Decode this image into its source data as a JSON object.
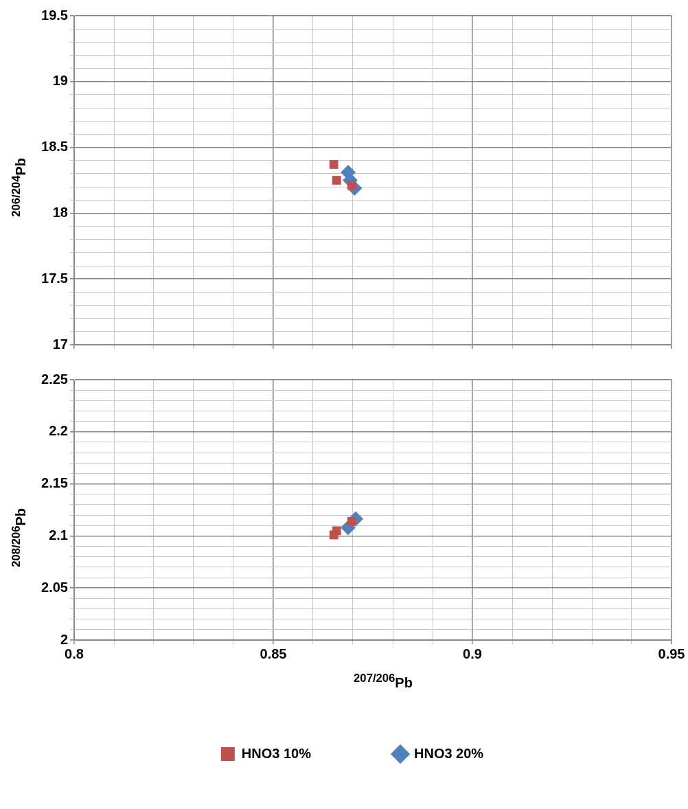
{
  "chart_data": [
    {
      "type": "scatter",
      "ylabel": "$^{206/204}$Pb",
      "xlim": [
        0.8,
        0.95
      ],
      "ylim": [
        17,
        19.5
      ],
      "xticks": [
        0.8,
        {
          "value": 0.81,
          "label": null
        },
        {
          "value": 0.82,
          "label": null
        },
        {
          "value": 0.83,
          "label": null
        },
        {
          "value": 0.84,
          "label": null
        },
        0.85,
        {
          "value": 0.86,
          "label": null
        },
        {
          "value": 0.87,
          "label": null
        },
        {
          "value": 0.88,
          "label": null
        },
        {
          "value": 0.89,
          "label": null
        },
        0.9,
        {
          "value": 0.91,
          "label": null
        },
        {
          "value": 0.92,
          "label": null
        },
        {
          "value": 0.93,
          "label": null
        },
        {
          "value": 0.94,
          "label": null
        },
        0.95
      ],
      "yticks": [
        17,
        {
          "value": 17.1,
          "label": null
        },
        {
          "value": 17.2,
          "label": null
        },
        {
          "value": 17.3,
          "label": null
        },
        {
          "value": 17.4,
          "label": null
        },
        17.5,
        {
          "value": 17.6,
          "label": null
        },
        {
          "value": 17.7,
          "label": null
        },
        {
          "value": 17.8,
          "label": null
        },
        {
          "value": 17.9,
          "label": null
        },
        18,
        {
          "value": 18.1,
          "label": null
        },
        {
          "value": 18.2,
          "label": null
        },
        {
          "value": 18.3,
          "label": null
        },
        {
          "value": 18.4,
          "label": null
        },
        18.5,
        {
          "value": 18.6,
          "label": null
        },
        {
          "value": 18.7,
          "label": null
        },
        {
          "value": 18.8,
          "label": null
        },
        {
          "value": 18.9,
          "label": null
        },
        19,
        {
          "value": 19.1,
          "label": null
        },
        {
          "value": 19.2,
          "label": null
        },
        {
          "value": 19.3,
          "label": null
        },
        {
          "value": 19.4,
          "label": null
        },
        19.5
      ],
      "grid": true,
      "tick_labels": "y",
      "series": [
        {
          "color": "#c0504d",
          "marker": "square",
          "x": [
            0.8652,
            0.8659,
            0.8697
          ],
          "values": [
            18.37,
            18.25,
            18.21
          ]
        },
        {
          "color": "#4f81bd",
          "marker": "diamond",
          "x": [
            0.8688,
            0.8693,
            0.8704
          ],
          "values": [
            18.31,
            18.25,
            18.19
          ]
        }
      ]
    },
    {
      "type": "scatter",
      "xlabel": "$^{207/206}$Pb",
      "ylabel": "$^{208/206}$Pb",
      "xlim": [
        0.8,
        0.95
      ],
      "ylim": [
        2,
        2.25
      ],
      "xticks": [
        0.8,
        {
          "value": 0.81,
          "label": null
        },
        {
          "value": 0.82,
          "label": null
        },
        {
          "value": 0.83,
          "label": null
        },
        {
          "value": 0.84,
          "label": null
        },
        0.85,
        {
          "value": 0.86,
          "label": null
        },
        {
          "value": 0.87,
          "label": null
        },
        {
          "value": 0.88,
          "label": null
        },
        {
          "value": 0.89,
          "label": null
        },
        0.9,
        {
          "value": 0.91,
          "label": null
        },
        {
          "value": 0.92,
          "label": null
        },
        {
          "value": 0.93,
          "label": null
        },
        {
          "value": 0.94,
          "label": null
        },
        0.95
      ],
      "yticks": [
        2,
        {
          "value": 2.01,
          "label": null
        },
        {
          "value": 2.02,
          "label": null
        },
        {
          "value": 2.03,
          "label": null
        },
        {
          "value": 2.04,
          "label": null
        },
        2.05,
        {
          "value": 2.06,
          "label": null
        },
        {
          "value": 2.07,
          "label": null
        },
        {
          "value": 2.08,
          "label": null
        },
        {
          "value": 2.09,
          "label": null
        },
        2.1,
        {
          "value": 2.11,
          "label": null
        },
        {
          "value": 2.12,
          "label": null
        },
        {
          "value": 2.13,
          "label": null
        },
        {
          "value": 2.14,
          "label": null
        },
        2.15,
        {
          "value": 2.16,
          "label": null
        },
        {
          "value": 2.17,
          "label": null
        },
        {
          "value": 2.18,
          "label": null
        },
        {
          "value": 2.19,
          "label": null
        },
        2.2,
        {
          "value": 2.21,
          "label": null
        },
        {
          "value": 2.22,
          "label": null
        },
        {
          "value": 2.23,
          "label": null
        },
        {
          "value": 2.24,
          "label": null
        },
        2.25
      ],
      "grid": true,
      "legend": "bottom",
      "series": [
        {
          "name": "HNO3 10%",
          "color": "#c0504d",
          "marker": "square",
          "x": [
            0.8652,
            0.8659,
            0.8697
          ],
          "values": [
            2.101,
            2.105,
            2.114
          ]
        },
        {
          "name": "HNO3 20%",
          "color": "#4f81bd",
          "marker": "diamond",
          "x": [
            0.8688,
            0.8707
          ],
          "values": [
            2.108,
            2.1165
          ]
        }
      ]
    }
  ]
}
